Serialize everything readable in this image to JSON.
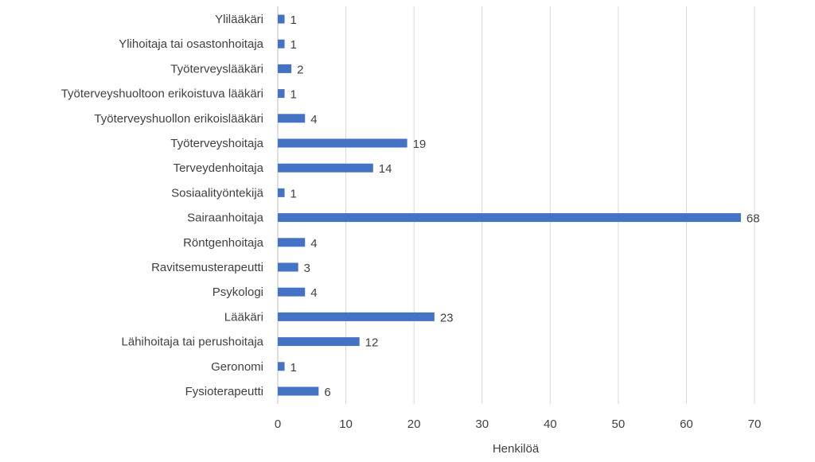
{
  "chart_data": {
    "type": "bar",
    "orientation": "horizontal",
    "categories": [
      "Ylilääkäri",
      "Ylihoitaja tai osastonhoitaja",
      "Työterveyslääkäri",
      "Työterveyshuoltoon erikoistuva lääkäri",
      "Työterveyshuollon erikoislääkäri",
      "Työterveyshoitaja",
      "Terveydenhoitaja",
      "Sosiaalityöntekijä",
      "Sairaanhoitaja",
      "Röntgenhoitaja",
      "Ravitsemusterapeutti",
      "Psykologi",
      "Lääkäri",
      "Lähihoitaja tai perushoitaja",
      "Geronomi",
      "Fysioterapeutti"
    ],
    "values": [
      1,
      1,
      2,
      1,
      4,
      19,
      14,
      1,
      68,
      4,
      3,
      4,
      23,
      12,
      1,
      6
    ],
    "xlabel": "Henkilöä",
    "ylabel": "",
    "xlim": [
      0,
      70
    ],
    "xticks": [
      "0",
      "10",
      "20",
      "30",
      "40",
      "50",
      "60",
      "70"
    ],
    "grid": true,
    "data_labels": true,
    "bar_color": "#4472C4",
    "grid_color": "#D9D9D9"
  }
}
